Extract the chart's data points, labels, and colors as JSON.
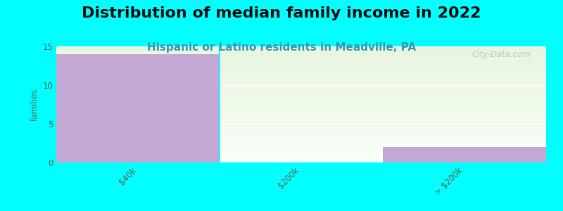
{
  "title": "Distribution of median family income in 2022",
  "subtitle": "Hispanic or Latino residents in Meadville, PA",
  "categories": [
    "$40k",
    "$200k",
    "> $200k"
  ],
  "values": [
    14,
    0,
    2
  ],
  "bar_color": "#c4a8d4",
  "background_color": "#00ffff",
  "plot_bg_gradient_top": "#e8f5e0",
  "plot_bg_gradient_bottom": "#f8fff8",
  "ylabel": "families",
  "ylim": [
    0,
    15
  ],
  "yticks": [
    0,
    5,
    10,
    15
  ],
  "watermark": "City-Data.com",
  "title_fontsize": 16,
  "subtitle_fontsize": 11,
  "subtitle_color": "#3a9ab0"
}
